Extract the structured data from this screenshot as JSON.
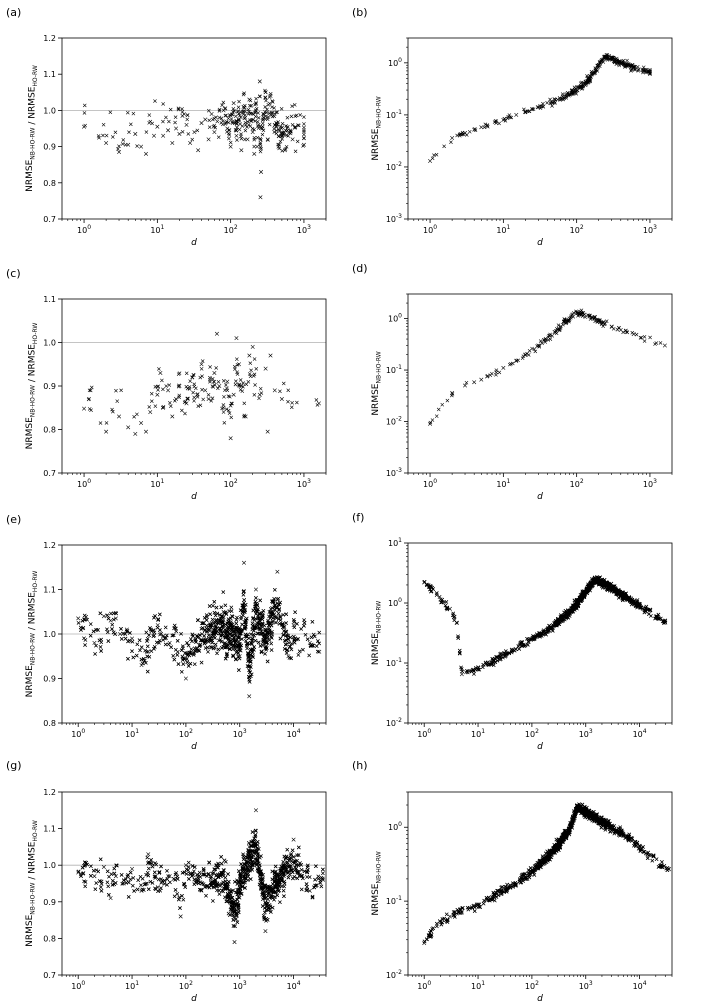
{
  "figure": {
    "title": ""
  },
  "chart_data": [
    {
      "panel": "(a)",
      "type": "scatter",
      "title": "",
      "xlabel": "d",
      "ylabel": "NRMSE_NB-HO-RW / NRMSE_HO-RW",
      "xscale": "log",
      "yscale": "linear",
      "xlim": [
        0.5,
        2000
      ],
      "ylim": [
        0.7,
        1.2
      ],
      "xticks": [
        1,
        10,
        100,
        1000
      ],
      "xticklabels": [
        "10^0",
        "10^1",
        "10^2",
        "10^3"
      ],
      "yticks": [
        0.7,
        0.8,
        0.9,
        1.0,
        1.1,
        1.2
      ],
      "yticklabels": [
        "0.7",
        "0.8",
        "0.9",
        "1.0",
        "1.1",
        "1.2"
      ],
      "reference_line": 1.0,
      "grid": false,
      "marker": "x",
      "marker_color": "#000000",
      "legend": "none",
      "points": [
        [
          1,
          0.955
        ],
        [
          2,
          0.91
        ],
        [
          3,
          0.885
        ],
        [
          4,
          0.905
        ],
        [
          5,
          0.935
        ],
        [
          6,
          0.9
        ],
        [
          7,
          0.88
        ],
        [
          9,
          0.93
        ],
        [
          10,
          0.955
        ],
        [
          12,
          0.93
        ],
        [
          14,
          0.945
        ],
        [
          16,
          0.91
        ],
        [
          18,
          0.95
        ],
        [
          20,
          0.935
        ],
        [
          22,
          0.985
        ],
        [
          25,
          0.96
        ],
        [
          28,
          0.91
        ],
        [
          32,
          0.94
        ],
        [
          36,
          0.89
        ],
        [
          40,
          0.965
        ],
        [
          45,
          0.975
        ],
        [
          50,
          0.92
        ],
        [
          55,
          0.99
        ],
        [
          60,
          0.94
        ],
        [
          70,
          0.98
        ],
        [
          80,
          1.0
        ],
        [
          90,
          0.95
        ],
        [
          100,
          0.9
        ],
        [
          110,
          1.02
        ],
        [
          120,
          0.93
        ],
        [
          130,
          0.975
        ],
        [
          140,
          0.89
        ],
        [
          150,
          1.01
        ],
        [
          160,
          0.96
        ],
        [
          170,
          0.92
        ],
        [
          180,
          1.03
        ],
        [
          190,
          0.97
        ],
        [
          200,
          0.94
        ],
        [
          210,
          0.88
        ],
        [
          220,
          1.0
        ],
        [
          230,
          0.9
        ],
        [
          240,
          0.96
        ],
        [
          250,
          1.08
        ],
        [
          255,
          0.76
        ],
        [
          260,
          0.83
        ],
        [
          270,
          0.95
        ],
        [
          280,
          0.99
        ],
        [
          300,
          1.05
        ],
        [
          320,
          0.92
        ],
        [
          350,
          1.04
        ],
        [
          400,
          0.96
        ],
        [
          450,
          0.9
        ],
        [
          550,
          0.89
        ],
        [
          700,
          0.92
        ],
        [
          1000,
          0.905
        ]
      ],
      "point_count": 300
    },
    {
      "panel": "(b)",
      "type": "scatter",
      "title": "",
      "xlabel": "d",
      "ylabel": "NRMSE_NB-HO-RW",
      "xscale": "log",
      "yscale": "log",
      "xlim": [
        0.5,
        2000
      ],
      "ylim": [
        0.001,
        3
      ],
      "xticks": [
        1,
        10,
        100,
        1000
      ],
      "xticklabels": [
        "10^0",
        "10^1",
        "10^2",
        "10^3"
      ],
      "yticks": [
        0.001,
        0.01,
        0.1,
        1
      ],
      "yticklabels": [
        "10^-3",
        "10^-2",
        "10^-1",
        "10^0"
      ],
      "grid": false,
      "marker": "x",
      "marker_color": "#000000",
      "legend": "none",
      "points": [
        [
          1,
          0.013
        ],
        [
          2,
          0.036
        ],
        [
          3,
          0.045
        ],
        [
          4,
          0.052
        ],
        [
          5,
          0.058
        ],
        [
          6,
          0.062
        ],
        [
          8,
          0.07
        ],
        [
          10,
          0.08
        ],
        [
          15,
          0.1
        ],
        [
          20,
          0.115
        ],
        [
          30,
          0.14
        ],
        [
          50,
          0.18
        ],
        [
          80,
          0.25
        ],
        [
          100,
          0.3
        ],
        [
          150,
          0.5
        ],
        [
          200,
          0.9
        ],
        [
          250,
          1.3
        ],
        [
          300,
          1.2
        ],
        [
          400,
          1.0
        ],
        [
          500,
          0.9
        ],
        [
          700,
          0.75
        ],
        [
          1000,
          0.68
        ]
      ],
      "point_count": 300
    },
    {
      "panel": "(c)",
      "type": "scatter",
      "title": "",
      "xlabel": "d",
      "ylabel": "NRMSE_NB-HO-RW / NRMSE_HO-RW",
      "xscale": "log",
      "yscale": "linear",
      "xlim": [
        0.5,
        2000
      ],
      "ylim": [
        0.7,
        1.1
      ],
      "xticks": [
        1,
        10,
        100,
        1000
      ],
      "xticklabels": [
        "10^0",
        "10^1",
        "10^2",
        "10^3"
      ],
      "yticks": [
        0.7,
        0.8,
        0.9,
        1.0,
        1.1
      ],
      "yticklabels": [
        "0.7",
        "0.8",
        "0.9",
        "1.0",
        "1.1"
      ],
      "reference_line": 1.0,
      "grid": false,
      "marker": "x",
      "marker_color": "#000000",
      "legend": "none",
      "points": [
        [
          1,
          0.848
        ],
        [
          2,
          0.795
        ],
        [
          3,
          0.83
        ],
        [
          4,
          0.805
        ],
        [
          5,
          0.79
        ],
        [
          6,
          0.815
        ],
        [
          7,
          0.795
        ],
        [
          8,
          0.84
        ],
        [
          10,
          0.88
        ],
        [
          11,
          0.93
        ],
        [
          12,
          0.85
        ],
        [
          14,
          0.89
        ],
        [
          16,
          0.83
        ],
        [
          18,
          0.87
        ],
        [
          20,
          0.9
        ],
        [
          25,
          0.86
        ],
        [
          30,
          0.92
        ],
        [
          35,
          0.88
        ],
        [
          40,
          0.95
        ],
        [
          45,
          0.89
        ],
        [
          50,
          0.87
        ],
        [
          60,
          0.93
        ],
        [
          65,
          1.02
        ],
        [
          70,
          0.9
        ],
        [
          80,
          0.85
        ],
        [
          90,
          0.91
        ],
        [
          100,
          0.78
        ],
        [
          110,
          0.88
        ],
        [
          120,
          1.01
        ],
        [
          130,
          0.95
        ],
        [
          140,
          0.9
        ],
        [
          160,
          0.83
        ],
        [
          180,
          0.97
        ],
        [
          200,
          0.99
        ],
        [
          250,
          0.88
        ],
        [
          300,
          0.94
        ],
        [
          320,
          0.795
        ],
        [
          350,
          0.97
        ],
        [
          400,
          0.89
        ],
        [
          500,
          0.87
        ],
        [
          1600,
          0.86
        ]
      ],
      "point_count": 150
    },
    {
      "panel": "(d)",
      "type": "scatter",
      "title": "",
      "xlabel": "d",
      "ylabel": "NRMSE_NB-HO-RW",
      "xscale": "log",
      "yscale": "log",
      "xlim": [
        0.5,
        2000
      ],
      "ylim": [
        0.001,
        3
      ],
      "xticks": [
        1,
        10,
        100,
        1000
      ],
      "xticklabels": [
        "10^0",
        "10^1",
        "10^2",
        "10^3"
      ],
      "yticks": [
        0.001,
        0.01,
        0.1,
        1
      ],
      "yticklabels": [
        "10^-3",
        "10^-2",
        "10^-1",
        "10^0"
      ],
      "grid": false,
      "marker": "x",
      "marker_color": "#000000",
      "legend": "none",
      "points": [
        [
          1,
          0.009
        ],
        [
          2,
          0.036
        ],
        [
          3,
          0.05
        ],
        [
          4,
          0.058
        ],
        [
          5,
          0.065
        ],
        [
          6,
          0.075
        ],
        [
          8,
          0.09
        ],
        [
          10,
          0.11
        ],
        [
          15,
          0.15
        ],
        [
          20,
          0.2
        ],
        [
          30,
          0.3
        ],
        [
          50,
          0.55
        ],
        [
          80,
          1.0
        ],
        [
          100,
          1.3
        ],
        [
          150,
          1.1
        ],
        [
          200,
          0.9
        ],
        [
          300,
          0.7
        ],
        [
          400,
          0.6
        ],
        [
          600,
          0.5
        ],
        [
          1600,
          0.3
        ]
      ],
      "point_count": 150
    },
    {
      "panel": "(e)",
      "type": "scatter",
      "title": "",
      "xlabel": "d",
      "ylabel": "NRMSE_NB-HO-RW / NRMSE_HO-RW",
      "xscale": "log",
      "yscale": "linear",
      "xlim": [
        0.5,
        40000
      ],
      "ylim": [
        0.8,
        1.2
      ],
      "xticks": [
        1,
        10,
        100,
        1000,
        10000
      ],
      "xticklabels": [
        "10^0",
        "10^1",
        "10^2",
        "10^3",
        "10^4"
      ],
      "yticks": [
        0.8,
        0.9,
        1.0,
        1.1,
        1.2
      ],
      "yticklabels": [
        "0.8",
        "0.9",
        "1.0",
        "1.1",
        "1.2"
      ],
      "reference_line": 1.0,
      "grid": false,
      "marker": "x",
      "marker_color": "#000000",
      "legend": "none",
      "points": [
        [
          1,
          1.035
        ],
        [
          2,
          0.98
        ],
        [
          3,
          1.04
        ],
        [
          4,
          1.03
        ],
        [
          5,
          1.035
        ],
        [
          6,
          1.0
        ],
        [
          8,
          1.01
        ],
        [
          10,
          0.99
        ],
        [
          15,
          0.93
        ],
        [
          20,
          0.96
        ],
        [
          30,
          1.02
        ],
        [
          50,
          0.98
        ],
        [
          100,
          0.9
        ],
        [
          200,
          1.0
        ],
        [
          500,
          1.05
        ],
        [
          1000,
          0.95
        ],
        [
          1200,
          1.16
        ],
        [
          1500,
          0.86
        ],
        [
          2000,
          1.1
        ],
        [
          3000,
          1.0
        ],
        [
          5000,
          1.14
        ],
        [
          8000,
          0.95
        ],
        [
          10000,
          1.02
        ],
        [
          20000,
          0.98
        ],
        [
          30000,
          0.96
        ]
      ],
      "point_count": 2000
    },
    {
      "panel": "(f)",
      "type": "scatter",
      "title": "",
      "xlabel": "d",
      "ylabel": "NRMSE_NB-HO-RW",
      "xscale": "log",
      "yscale": "log",
      "xlim": [
        0.5,
        40000
      ],
      "ylim": [
        0.01,
        10
      ],
      "xticks": [
        1,
        10,
        100,
        1000,
        10000
      ],
      "xticklabels": [
        "10^0",
        "10^1",
        "10^2",
        "10^3",
        "10^4"
      ],
      "yticks": [
        0.01,
        0.1,
        1,
        10
      ],
      "yticklabels": [
        "10^-2",
        "10^-1",
        "10^0",
        "10^1"
      ],
      "grid": false,
      "marker": "x",
      "marker_color": "#000000",
      "legend": "none",
      "points": [
        [
          1,
          2.2
        ],
        [
          2,
          1.15
        ],
        [
          3,
          0.8
        ],
        [
          4,
          0.47
        ],
        [
          5,
          0.065
        ],
        [
          6,
          0.07
        ],
        [
          8,
          0.075
        ],
        [
          10,
          0.085
        ],
        [
          20,
          0.11
        ],
        [
          50,
          0.17
        ],
        [
          100,
          0.25
        ],
        [
          200,
          0.35
        ],
        [
          500,
          0.7
        ],
        [
          1000,
          1.5
        ],
        [
          1500,
          2.5
        ],
        [
          3000,
          1.8
        ],
        [
          6000,
          1.2
        ],
        [
          10000,
          0.9
        ],
        [
          20000,
          0.6
        ],
        [
          30000,
          0.47
        ]
      ],
      "point_count": 2000
    },
    {
      "panel": "(g)",
      "type": "scatter",
      "title": "",
      "xlabel": "d",
      "ylabel": "NRMSE_NB-HO-RW / NRMSE_HO-RW",
      "xscale": "log",
      "yscale": "linear",
      "xlim": [
        0.5,
        40000
      ],
      "ylim": [
        0.7,
        1.2
      ],
      "xticks": [
        1,
        10,
        100,
        1000,
        10000
      ],
      "xticklabels": [
        "10^0",
        "10^1",
        "10^2",
        "10^3",
        "10^4"
      ],
      "yticks": [
        0.7,
        0.8,
        0.9,
        1.0,
        1.1,
        1.2
      ],
      "yticklabels": [
        "0.7",
        "0.8",
        "0.9",
        "1.0",
        "1.1",
        "1.2"
      ],
      "reference_line": 1.0,
      "grid": false,
      "marker": "x",
      "marker_color": "#000000",
      "legend": "none",
      "points": [
        [
          1,
          0.98
        ],
        [
          2,
          0.97
        ],
        [
          3,
          0.995
        ],
        [
          4,
          0.91
        ],
        [
          5,
          0.97
        ],
        [
          7,
          0.95
        ],
        [
          10,
          0.99
        ],
        [
          15,
          0.93
        ],
        [
          20,
          1.03
        ],
        [
          30,
          0.94
        ],
        [
          50,
          0.97
        ],
        [
          80,
          0.86
        ],
        [
          100,
          1.0
        ],
        [
          200,
          0.95
        ],
        [
          500,
          0.97
        ],
        [
          800,
          0.79
        ],
        [
          1000,
          0.93
        ],
        [
          1500,
          1.05
        ],
        [
          2000,
          1.15
        ],
        [
          3000,
          0.82
        ],
        [
          5000,
          0.96
        ],
        [
          10000,
          1.07
        ],
        [
          20000,
          0.93
        ],
        [
          35000,
          0.96
        ]
      ],
      "point_count": 2000
    },
    {
      "panel": "(h)",
      "type": "scatter",
      "title": "",
      "xlabel": "d",
      "ylabel": "NRMSE_NB-HO-RW",
      "xscale": "log",
      "yscale": "log",
      "xlim": [
        0.5,
        40000
      ],
      "ylim": [
        0.01,
        3
      ],
      "xticks": [
        1,
        10,
        100,
        1000,
        10000
      ],
      "xticklabels": [
        "10^0",
        "10^1",
        "10^2",
        "10^3",
        "10^4"
      ],
      "yticks": [
        0.01,
        0.1,
        1
      ],
      "yticklabels": [
        "10^-2",
        "10^-1",
        "10^0"
      ],
      "grid": false,
      "marker": "x",
      "marker_color": "#000000",
      "legend": "none",
      "points": [
        [
          1,
          0.027
        ],
        [
          2,
          0.052
        ],
        [
          3,
          0.062
        ],
        [
          4,
          0.068
        ],
        [
          5,
          0.072
        ],
        [
          7,
          0.08
        ],
        [
          10,
          0.09
        ],
        [
          20,
          0.12
        ],
        [
          50,
          0.17
        ],
        [
          100,
          0.25
        ],
        [
          200,
          0.4
        ],
        [
          500,
          0.9
        ],
        [
          700,
          1.9
        ],
        [
          1000,
          1.6
        ],
        [
          2000,
          1.2
        ],
        [
          5000,
          0.8
        ],
        [
          10000,
          0.55
        ],
        [
          15000,
          0.42
        ],
        [
          25000,
          0.3
        ],
        [
          35000,
          0.27
        ]
      ],
      "point_count": 2000
    }
  ]
}
